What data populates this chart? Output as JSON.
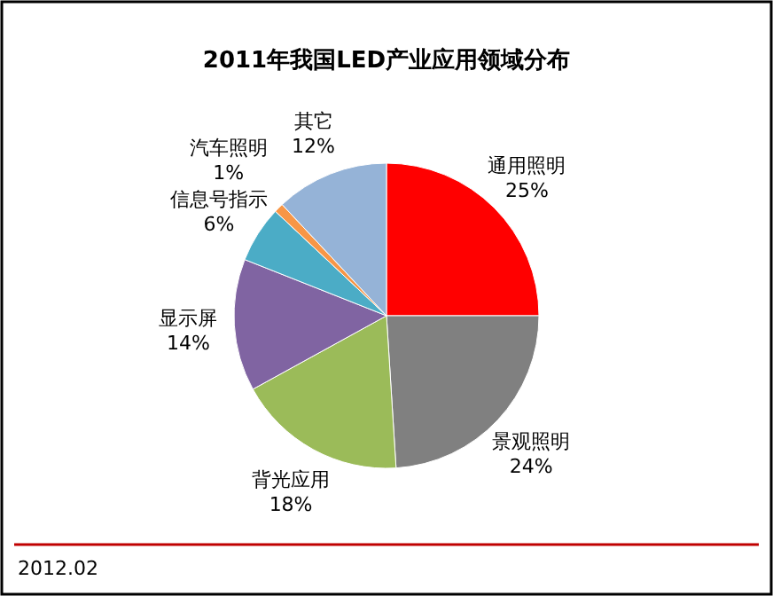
{
  "chart_data": {
    "type": "pie",
    "title": "2011年我国LED产业应用领域分布",
    "categories": [
      "通用照明",
      "景观照明",
      "背光应用",
      "显示屏",
      "信息号指示",
      "汽车照明",
      "其它"
    ],
    "values": [
      25,
      24,
      18,
      14,
      6,
      1,
      12
    ],
    "value_labels": [
      "25%",
      "24%",
      "18%",
      "14%",
      "6%",
      "1%",
      "12%"
    ],
    "colors": [
      "#ff0000",
      "#808080",
      "#9bbb59",
      "#8064a2",
      "#4bacc6",
      "#f79646",
      "#95b3d7"
    ],
    "annotations": [
      "2012.02"
    ]
  }
}
